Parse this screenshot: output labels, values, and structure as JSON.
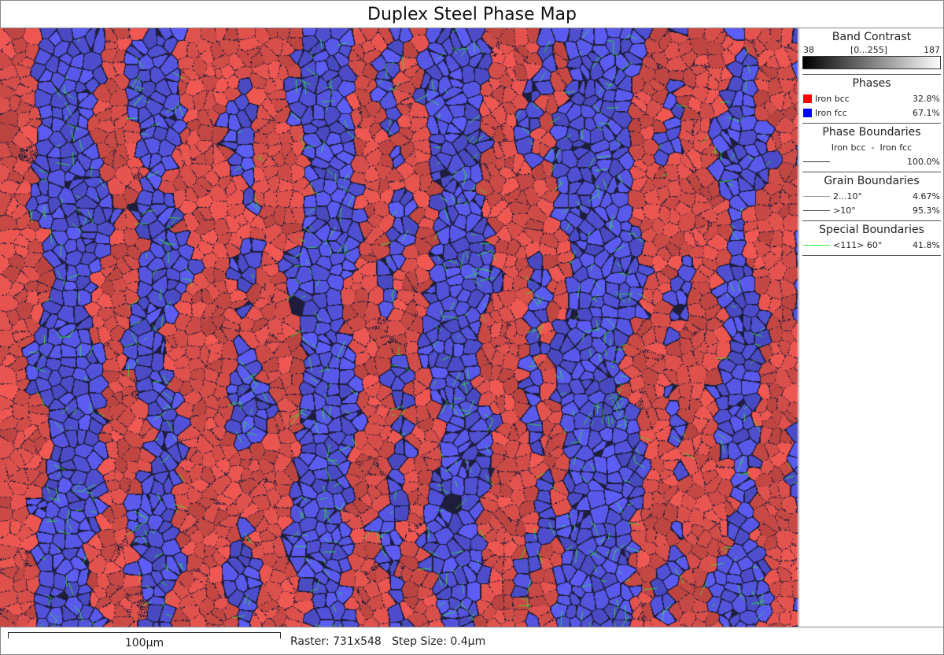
{
  "title": "Duplex Steel Phase Map",
  "legend": {
    "band_contrast": {
      "heading": "Band Contrast",
      "min": "38",
      "range": "[0...255]",
      "max": "187"
    },
    "phases": {
      "heading": "Phases",
      "items": [
        {
          "label": "Iron bcc",
          "value": "32.8%",
          "color": "#ff0000"
        },
        {
          "label": "Iron fcc",
          "value": "67.1%",
          "color": "#0000ff"
        }
      ]
    },
    "phase_boundaries": {
      "heading": "Phase Boundaries",
      "pair": "Iron bcc  -  Iron fcc",
      "value": "100.0%",
      "color": "#333333"
    },
    "grain_boundaries": {
      "heading": "Grain Boundaries",
      "items": [
        {
          "label": "2...10°",
          "value": "4.67%",
          "color": "#999999"
        },
        {
          "label": ">10°",
          "value": "95.3%",
          "color": "#555555"
        }
      ]
    },
    "special_boundaries": {
      "heading": "Special Boundaries",
      "items": [
        {
          "label": "<111> 60°",
          "value": "41.8%",
          "color": "#33ee33"
        }
      ]
    }
  },
  "bottom": {
    "scale_label": "100µm",
    "raster": "Raster: 731x548",
    "step_size": "Step Size: 0.4µm"
  }
}
